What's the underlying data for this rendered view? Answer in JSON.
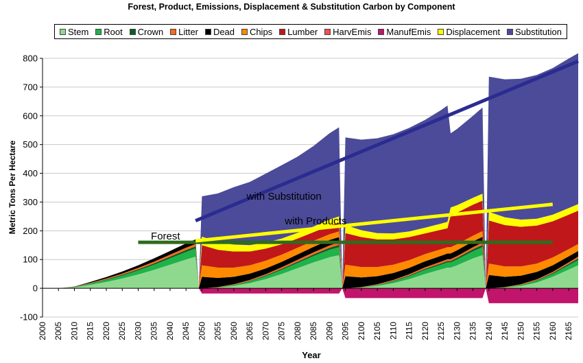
{
  "chart_data": {
    "type": "area",
    "title": "Forest, Product, Emissions, Displacement & Substitution Carbon by Component",
    "xlabel": "Year",
    "ylabel": "Metric Tons Per Hectare",
    "xlim": [
      2000,
      2168
    ],
    "ylim": [
      -100,
      800
    ],
    "x_ticks": [
      "2000",
      "2005",
      "2010",
      "2015",
      "2020",
      "2025",
      "2030",
      "2035",
      "2040",
      "2045",
      "2050",
      "2055",
      "2060",
      "2065",
      "2070",
      "2075",
      "2080",
      "2085",
      "2090",
      "2095",
      "2100",
      "2105",
      "2110",
      "2115",
      "2120",
      "2125",
      "2130",
      "2135",
      "2140",
      "2145",
      "2150",
      "2155",
      "2160",
      "2165"
    ],
    "y_ticks": [
      "-100",
      "0",
      "100",
      "200",
      "300",
      "400",
      "500",
      "600",
      "700",
      "800"
    ],
    "grid": "horizontal",
    "legend_position": "top",
    "x": [
      2005,
      2010,
      2015,
      2020,
      2025,
      2030,
      2035,
      2040,
      2045,
      2048,
      2049,
      2050,
      2055,
      2060,
      2065,
      2070,
      2075,
      2080,
      2085,
      2090,
      2093,
      2094,
      2095,
      2100,
      2105,
      2110,
      2115,
      2120,
      2125,
      2127,
      2128,
      2130,
      2135,
      2138,
      2139,
      2140,
      2145,
      2150,
      2155,
      2160,
      2165,
      2168
    ],
    "series": [
      {
        "name": "Stem",
        "color": "#8fd98f",
        "values": [
          0,
          3,
          12,
          22,
          34,
          48,
          64,
          82,
          100,
          110,
          0,
          0,
          2,
          8,
          18,
          32,
          50,
          70,
          90,
          108,
          115,
          0,
          0,
          2,
          8,
          18,
          32,
          50,
          66,
          72,
          72,
          80,
          104,
          115,
          0,
          0,
          2,
          8,
          20,
          40,
          65,
          80
        ]
      },
      {
        "name": "Root",
        "color": "#1fb34a",
        "values": [
          0,
          1,
          4,
          7,
          10,
          14,
          18,
          22,
          26,
          28,
          0,
          0,
          1,
          3,
          6,
          10,
          14,
          18,
          22,
          26,
          28,
          0,
          0,
          1,
          3,
          6,
          10,
          14,
          16,
          18,
          18,
          20,
          25,
          28,
          0,
          0,
          1,
          3,
          6,
          10,
          15,
          18
        ]
      },
      {
        "name": "Crown",
        "color": "#0f5c24",
        "values": [
          0,
          0,
          1,
          2,
          3,
          4,
          5,
          6,
          7,
          8,
          0,
          0,
          0,
          1,
          2,
          3,
          4,
          5,
          6,
          7,
          8,
          0,
          0,
          0,
          1,
          2,
          3,
          4,
          5,
          5,
          5,
          6,
          7,
          8,
          0,
          0,
          0,
          1,
          2,
          3,
          5,
          6
        ]
      },
      {
        "name": "Litter",
        "color": "#ff6a1a",
        "values": [
          0,
          1,
          2,
          3,
          4,
          5,
          6,
          7,
          8,
          8,
          0,
          0,
          1,
          2,
          3,
          4,
          5,
          6,
          7,
          8,
          8,
          0,
          0,
          1,
          2,
          3,
          4,
          5,
          6,
          6,
          6,
          6,
          7,
          8,
          0,
          0,
          1,
          2,
          3,
          4,
          5,
          6
        ]
      },
      {
        "name": "Dead",
        "color": "#000000",
        "values": [
          0,
          1,
          3,
          5,
          7,
          9,
          11,
          13,
          15,
          16,
          0,
          40,
          32,
          26,
          22,
          20,
          19,
          19,
          19,
          19,
          19,
          0,
          42,
          34,
          28,
          24,
          22,
          21,
          20,
          20,
          20,
          20,
          20,
          20,
          0,
          46,
          36,
          30,
          26,
          23,
          21,
          20
        ]
      },
      {
        "name": "Chips",
        "color": "#ff8a00",
        "values": [
          0,
          0,
          0,
          0,
          0,
          0,
          0,
          0,
          0,
          0,
          0,
          40,
          36,
          32,
          29,
          27,
          25,
          23,
          21,
          20,
          20,
          0,
          40,
          36,
          32,
          29,
          27,
          25,
          23,
          22,
          22,
          21,
          20,
          20,
          0,
          40,
          36,
          32,
          29,
          27,
          25,
          24
        ]
      },
      {
        "name": "Lumber",
        "color": "#c0181a",
        "values": [
          0,
          0,
          0,
          0,
          0,
          0,
          0,
          0,
          0,
          0,
          0,
          70,
          62,
          56,
          48,
          42,
          36,
          32,
          30,
          30,
          30,
          0,
          110,
          104,
          96,
          88,
          80,
          72,
          68,
          66,
          110,
          110,
          108,
          106,
          0,
          150,
          144,
          138,
          132,
          126,
          120,
          116
        ]
      },
      {
        "name": "HarvEmis",
        "color": "#f05050",
        "values": [
          0,
          0,
          0,
          0,
          0,
          0,
          0,
          0,
          0,
          0,
          0,
          0,
          0,
          0,
          0,
          0,
          0,
          0,
          0,
          0,
          0,
          0,
          0,
          0,
          0,
          0,
          0,
          0,
          0,
          0,
          0,
          0,
          0,
          0,
          0,
          0,
          0,
          0,
          0,
          0,
          0,
          0
        ]
      },
      {
        "name": "ManufEmis",
        "color": "#c0156a",
        "values": [
          0,
          0,
          0,
          0,
          0,
          0,
          0,
          0,
          0,
          0,
          0,
          -18,
          -18,
          -18,
          -18,
          -18,
          -18,
          -18,
          -18,
          -18,
          -18,
          0,
          -34,
          -34,
          -34,
          -34,
          -34,
          -34,
          -34,
          -34,
          -34,
          -34,
          -34,
          -34,
          0,
          -52,
          -52,
          -52,
          -52,
          -52,
          -52,
          -52
        ]
      },
      {
        "name": "Displacement",
        "color": "#ffff00",
        "values": [
          0,
          0,
          0,
          0,
          0,
          0,
          0,
          0,
          0,
          0,
          0,
          30,
          26,
          24,
          22,
          21,
          20,
          20,
          20,
          21,
          22,
          0,
          28,
          24,
          22,
          21,
          20,
          20,
          21,
          22,
          28,
          26,
          24,
          24,
          0,
          30,
          27,
          25,
          24,
          23,
          23,
          23
        ]
      },
      {
        "name": "Substitution",
        "color": "#4b4b9a",
        "values": [
          0,
          0,
          0,
          0,
          0,
          0,
          0,
          0,
          0,
          0,
          0,
          140,
          170,
          200,
          220,
          240,
          255,
          265,
          280,
          300,
          310,
          0,
          305,
          315,
          330,
          345,
          360,
          375,
          395,
          405,
          258,
          265,
          285,
          300,
          0,
          470,
          480,
          490,
          500,
          510,
          520,
          525
        ]
      }
    ],
    "annotations": [
      {
        "text": "with Substitution",
        "x": 2064,
        "y": 308
      },
      {
        "text": "with Products",
        "x": 2076,
        "y": 222
      },
      {
        "text": "Forest",
        "x": 2034,
        "y": 170
      }
    ],
    "reference_lines": [
      {
        "name": "Forest",
        "color": "#2f6b1e",
        "x": [
          2030,
          2160
        ],
        "y": [
          160,
          160
        ]
      },
      {
        "name": "with Products",
        "color": "#ffff00",
        "x": [
          2048,
          2160
        ],
        "y": [
          165,
          292
        ]
      },
      {
        "name": "with Substitution",
        "color": "#2b2b90",
        "x": [
          2048,
          2168
        ],
        "y": [
          235,
          790
        ]
      }
    ]
  }
}
